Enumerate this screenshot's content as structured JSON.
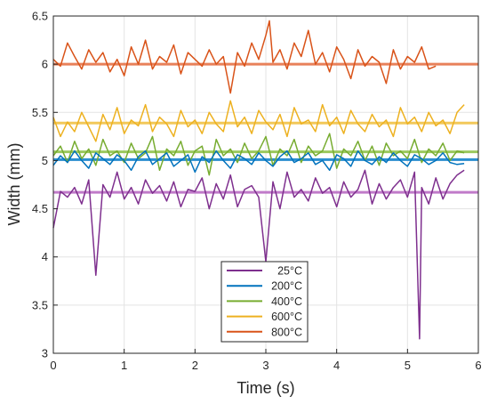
{
  "chart_data": {
    "type": "line",
    "title": "",
    "xlabel": "Time (s)",
    "ylabel": "Width (mm)",
    "xlim": [
      0,
      6
    ],
    "ylim": [
      3,
      6.5
    ],
    "xticks": [
      "0",
      "1",
      "2",
      "3",
      "4",
      "5",
      "6"
    ],
    "yticks": [
      "3",
      "3.5",
      "4",
      "4.5",
      "5",
      "5.5",
      "6",
      "6.5"
    ],
    "grid": true,
    "legend_position": "bottom-center",
    "series": [
      {
        "name": "25°C",
        "color": "#7E2F8E",
        "mean_color": "#C07AC9",
        "mean": 4.67,
        "x": [
          0.0,
          0.1,
          0.2,
          0.3,
          0.4,
          0.5,
          0.6,
          0.7,
          0.8,
          0.9,
          1.0,
          1.1,
          1.2,
          1.3,
          1.4,
          1.5,
          1.6,
          1.7,
          1.8,
          1.9,
          2.0,
          2.1,
          2.2,
          2.3,
          2.4,
          2.5,
          2.6,
          2.7,
          2.8,
          2.9,
          3.0,
          3.1,
          3.2,
          3.3,
          3.4,
          3.5,
          3.6,
          3.7,
          3.8,
          3.9,
          4.0,
          4.1,
          4.2,
          4.3,
          4.4,
          4.5,
          4.6,
          4.7,
          4.8,
          4.9,
          5.0,
          5.1,
          5.17,
          5.2,
          5.3,
          5.4,
          5.5,
          5.6,
          5.7,
          5.8
        ],
        "y": [
          4.3,
          4.68,
          4.62,
          4.72,
          4.55,
          4.8,
          3.81,
          4.75,
          4.62,
          4.88,
          4.6,
          4.72,
          4.55,
          4.8,
          4.66,
          4.74,
          4.58,
          4.78,
          4.52,
          4.7,
          4.68,
          4.82,
          4.5,
          4.76,
          4.6,
          4.85,
          4.52,
          4.7,
          4.74,
          4.62,
          3.95,
          4.78,
          4.5,
          4.88,
          4.62,
          4.7,
          4.58,
          4.82,
          4.66,
          4.72,
          4.52,
          4.78,
          4.62,
          4.7,
          4.9,
          4.55,
          4.76,
          4.6,
          4.72,
          4.8,
          4.62,
          4.88,
          3.15,
          4.72,
          4.55,
          4.82,
          4.6,
          4.76,
          4.85,
          4.9
        ]
      },
      {
        "name": "200°C",
        "color": "#0072BD",
        "mean_color": "#2A8FD0",
        "mean": 5.01,
        "x": [
          0.0,
          0.1,
          0.2,
          0.3,
          0.4,
          0.5,
          0.6,
          0.7,
          0.8,
          0.9,
          1.0,
          1.1,
          1.2,
          1.3,
          1.4,
          1.5,
          1.6,
          1.7,
          1.8,
          1.9,
          2.0,
          2.1,
          2.2,
          2.3,
          2.4,
          2.5,
          2.6,
          2.7,
          2.8,
          2.9,
          3.0,
          3.1,
          3.2,
          3.3,
          3.4,
          3.5,
          3.6,
          3.7,
          3.8,
          3.9,
          4.0,
          4.1,
          4.2,
          4.3,
          4.4,
          4.5,
          4.6,
          4.7,
          4.8,
          4.9,
          5.0,
          5.1,
          5.2,
          5.3,
          5.4,
          5.5,
          5.6,
          5.7,
          5.8
        ],
        "y": [
          4.95,
          5.05,
          4.98,
          5.1,
          5.0,
          4.92,
          5.08,
          5.02,
          4.96,
          5.06,
          5.0,
          4.9,
          5.04,
          5.1,
          4.96,
          5.02,
          5.08,
          4.94,
          5.0,
          5.06,
          4.88,
          5.04,
          4.98,
          5.1,
          5.0,
          4.92,
          5.06,
          5.02,
          4.96,
          5.08,
          5.0,
          4.94,
          5.04,
          5.1,
          4.98,
          5.02,
          5.08,
          4.96,
          5.0,
          4.9,
          5.06,
          5.02,
          4.94,
          5.1,
          5.0,
          4.96,
          5.04,
          4.98,
          5.08,
          5.0,
          4.94,
          5.06,
          5.02,
          4.96,
          5.0,
          5.08,
          4.98,
          4.96,
          4.97
        ]
      },
      {
        "name": "400°C",
        "color": "#77AC30",
        "mean_color": "#9BC95E",
        "mean": 5.09,
        "x": [
          0.0,
          0.1,
          0.2,
          0.3,
          0.4,
          0.5,
          0.6,
          0.7,
          0.8,
          0.9,
          1.0,
          1.1,
          1.2,
          1.3,
          1.4,
          1.5,
          1.6,
          1.7,
          1.8,
          1.9,
          2.0,
          2.1,
          2.2,
          2.3,
          2.4,
          2.5,
          2.6,
          2.7,
          2.8,
          2.9,
          3.0,
          3.1,
          3.2,
          3.3,
          3.4,
          3.5,
          3.6,
          3.7,
          3.8,
          3.9,
          4.0,
          4.1,
          4.2,
          4.3,
          4.4,
          4.5,
          4.6,
          4.7,
          4.8,
          4.9,
          5.0,
          5.1,
          5.2,
          5.3,
          5.4,
          5.5,
          5.6,
          5.7,
          5.8
        ],
        "y": [
          5.05,
          5.15,
          4.98,
          5.2,
          5.02,
          5.12,
          4.95,
          5.22,
          5.05,
          5.1,
          4.98,
          5.18,
          5.02,
          5.08,
          5.25,
          4.9,
          5.12,
          5.05,
          5.2,
          4.95,
          5.1,
          5.15,
          4.85,
          5.22,
          5.05,
          5.12,
          4.98,
          5.18,
          5.02,
          5.1,
          5.25,
          4.95,
          5.12,
          5.05,
          5.22,
          4.98,
          5.15,
          5.05,
          5.1,
          5.28,
          4.92,
          5.12,
          5.05,
          5.2,
          5.0,
          5.15,
          4.95,
          5.18,
          5.05,
          5.1,
          5.02,
          5.22,
          4.98,
          5.12,
          5.05,
          5.18,
          5.0,
          5.1,
          5.08
        ]
      },
      {
        "name": "600°C",
        "color": "#EDB120",
        "mean_color": "#F2C85A",
        "mean": 5.39,
        "x": [
          0.0,
          0.1,
          0.2,
          0.3,
          0.4,
          0.5,
          0.6,
          0.7,
          0.8,
          0.9,
          1.0,
          1.1,
          1.2,
          1.3,
          1.4,
          1.5,
          1.6,
          1.7,
          1.8,
          1.9,
          2.0,
          2.1,
          2.2,
          2.3,
          2.4,
          2.5,
          2.6,
          2.7,
          2.8,
          2.9,
          3.0,
          3.1,
          3.2,
          3.3,
          3.4,
          3.5,
          3.6,
          3.7,
          3.8,
          3.9,
          4.0,
          4.1,
          4.2,
          4.3,
          4.4,
          4.5,
          4.6,
          4.7,
          4.8,
          4.9,
          5.0,
          5.1,
          5.2,
          5.3,
          5.4,
          5.5,
          5.6,
          5.7,
          5.8
        ],
        "y": [
          5.45,
          5.25,
          5.4,
          5.3,
          5.5,
          5.35,
          5.2,
          5.48,
          5.32,
          5.55,
          5.28,
          5.42,
          5.36,
          5.58,
          5.3,
          5.45,
          5.38,
          5.25,
          5.52,
          5.35,
          5.42,
          5.28,
          5.5,
          5.38,
          5.3,
          5.62,
          5.35,
          5.45,
          5.28,
          5.52,
          5.4,
          5.32,
          5.48,
          5.25,
          5.55,
          5.38,
          5.42,
          5.3,
          5.58,
          5.36,
          5.45,
          5.28,
          5.52,
          5.38,
          5.3,
          5.48,
          5.35,
          5.42,
          5.25,
          5.55,
          5.38,
          5.45,
          5.3,
          5.5,
          5.36,
          5.42,
          5.28,
          5.5,
          5.58
        ]
      },
      {
        "name": "800°C",
        "color": "#D95319",
        "mean_color": "#E8815A",
        "mean": 6.0,
        "x": [
          0.0,
          0.1,
          0.2,
          0.3,
          0.4,
          0.5,
          0.6,
          0.7,
          0.8,
          0.9,
          1.0,
          1.1,
          1.2,
          1.3,
          1.4,
          1.5,
          1.6,
          1.7,
          1.8,
          1.9,
          2.0,
          2.1,
          2.2,
          2.3,
          2.4,
          2.5,
          2.6,
          2.7,
          2.8,
          2.9,
          3.0,
          3.05,
          3.1,
          3.2,
          3.3,
          3.4,
          3.5,
          3.6,
          3.7,
          3.8,
          3.9,
          4.0,
          4.1,
          4.2,
          4.3,
          4.4,
          4.5,
          4.6,
          4.7,
          4.8,
          4.9,
          5.0,
          5.1,
          5.2,
          5.3,
          5.4
        ],
        "y": [
          6.05,
          5.98,
          6.22,
          6.08,
          5.95,
          6.15,
          6.02,
          6.12,
          5.92,
          6.05,
          5.88,
          6.18,
          6.0,
          6.25,
          5.95,
          6.08,
          6.02,
          6.2,
          5.9,
          6.12,
          6.05,
          5.98,
          6.15,
          6.0,
          6.08,
          5.7,
          6.12,
          5.98,
          6.22,
          6.05,
          6.3,
          6.45,
          6.02,
          6.15,
          5.95,
          6.22,
          6.08,
          6.35,
          6.0,
          6.12,
          5.92,
          6.18,
          6.05,
          5.85,
          6.15,
          5.98,
          6.08,
          6.02,
          5.8,
          6.15,
          5.95,
          6.08,
          6.02,
          6.18,
          5.95,
          5.98
        ]
      }
    ]
  }
}
